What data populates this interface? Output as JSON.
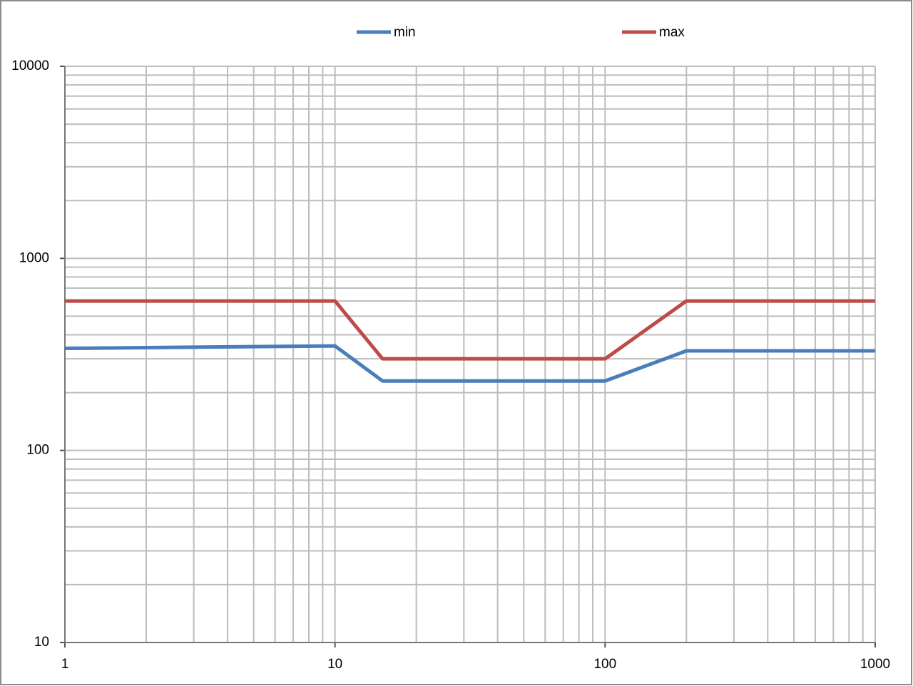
{
  "chart_data": {
    "type": "line",
    "x": [
      1,
      10,
      15,
      100,
      200,
      1000
    ],
    "series": [
      {
        "name": "min",
        "color": "#4a7ebb",
        "values": [
          340,
          350,
          230,
          230,
          330,
          330
        ]
      },
      {
        "name": "max",
        "color": "#be4b48",
        "values": [
          600,
          600,
          300,
          300,
          600,
          600
        ]
      }
    ],
    "xlim": [
      1,
      1000
    ],
    "xticks": [
      1,
      10,
      100,
      1000
    ],
    "ylim": [
      10,
      10000
    ],
    "yticks": [
      10,
      100,
      1000,
      10000
    ],
    "xlog": true,
    "ylog": true,
    "grid": true,
    "minor_grid": true,
    "legend": "top"
  }
}
